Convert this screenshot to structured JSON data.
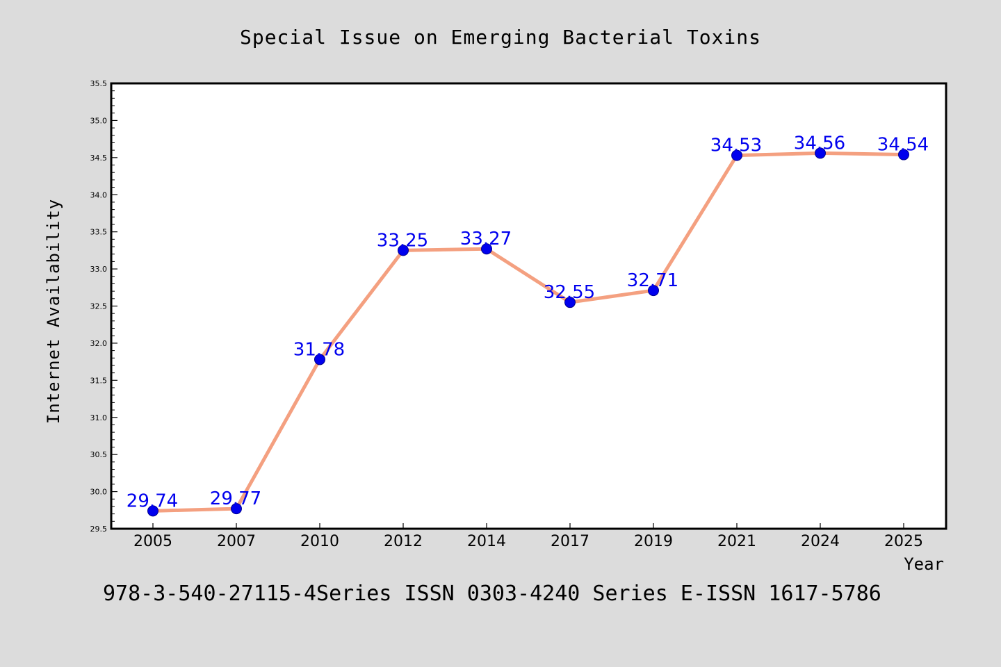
{
  "chart_data": {
    "type": "line",
    "title": "Special Issue on Emerging Bacterial Toxins",
    "xlabel": "Year",
    "ylabel": "Internet Availability",
    "footer": "978-3-540-27115-4Series ISSN 0303-4240 Series E-ISSN 1617-5786",
    "categories": [
      "2005",
      "2007",
      "2010",
      "2012",
      "2014",
      "2017",
      "2019",
      "2021",
      "2024",
      "2025"
    ],
    "series": [
      {
        "values": [
          29.74,
          29.77,
          31.78,
          33.25,
          33.27,
          32.55,
          32.71,
          34.53,
          34.56,
          34.54
        ],
        "line_color": "#f4a080",
        "marker_color": "#0000ee"
      }
    ],
    "data_labels": [
      "29.74",
      "29.77",
      "31.78",
      "33.25",
      "33.27",
      "32.55",
      "32.71",
      "34.53",
      "34.56",
      "34.54"
    ],
    "ylim": [
      29.5,
      35.5
    ],
    "yticks": [
      "29.5",
      "30.0",
      "30.5",
      "31.0",
      "31.5",
      "32.0",
      "32.5",
      "33.0",
      "33.5",
      "34.0",
      "34.5",
      "35.0",
      "35.5"
    ],
    "grid": false,
    "legend": "none",
    "colors": {
      "background": "#dcdcdc",
      "plot_background": "#ffffff",
      "label_color": "#0000ee"
    }
  }
}
